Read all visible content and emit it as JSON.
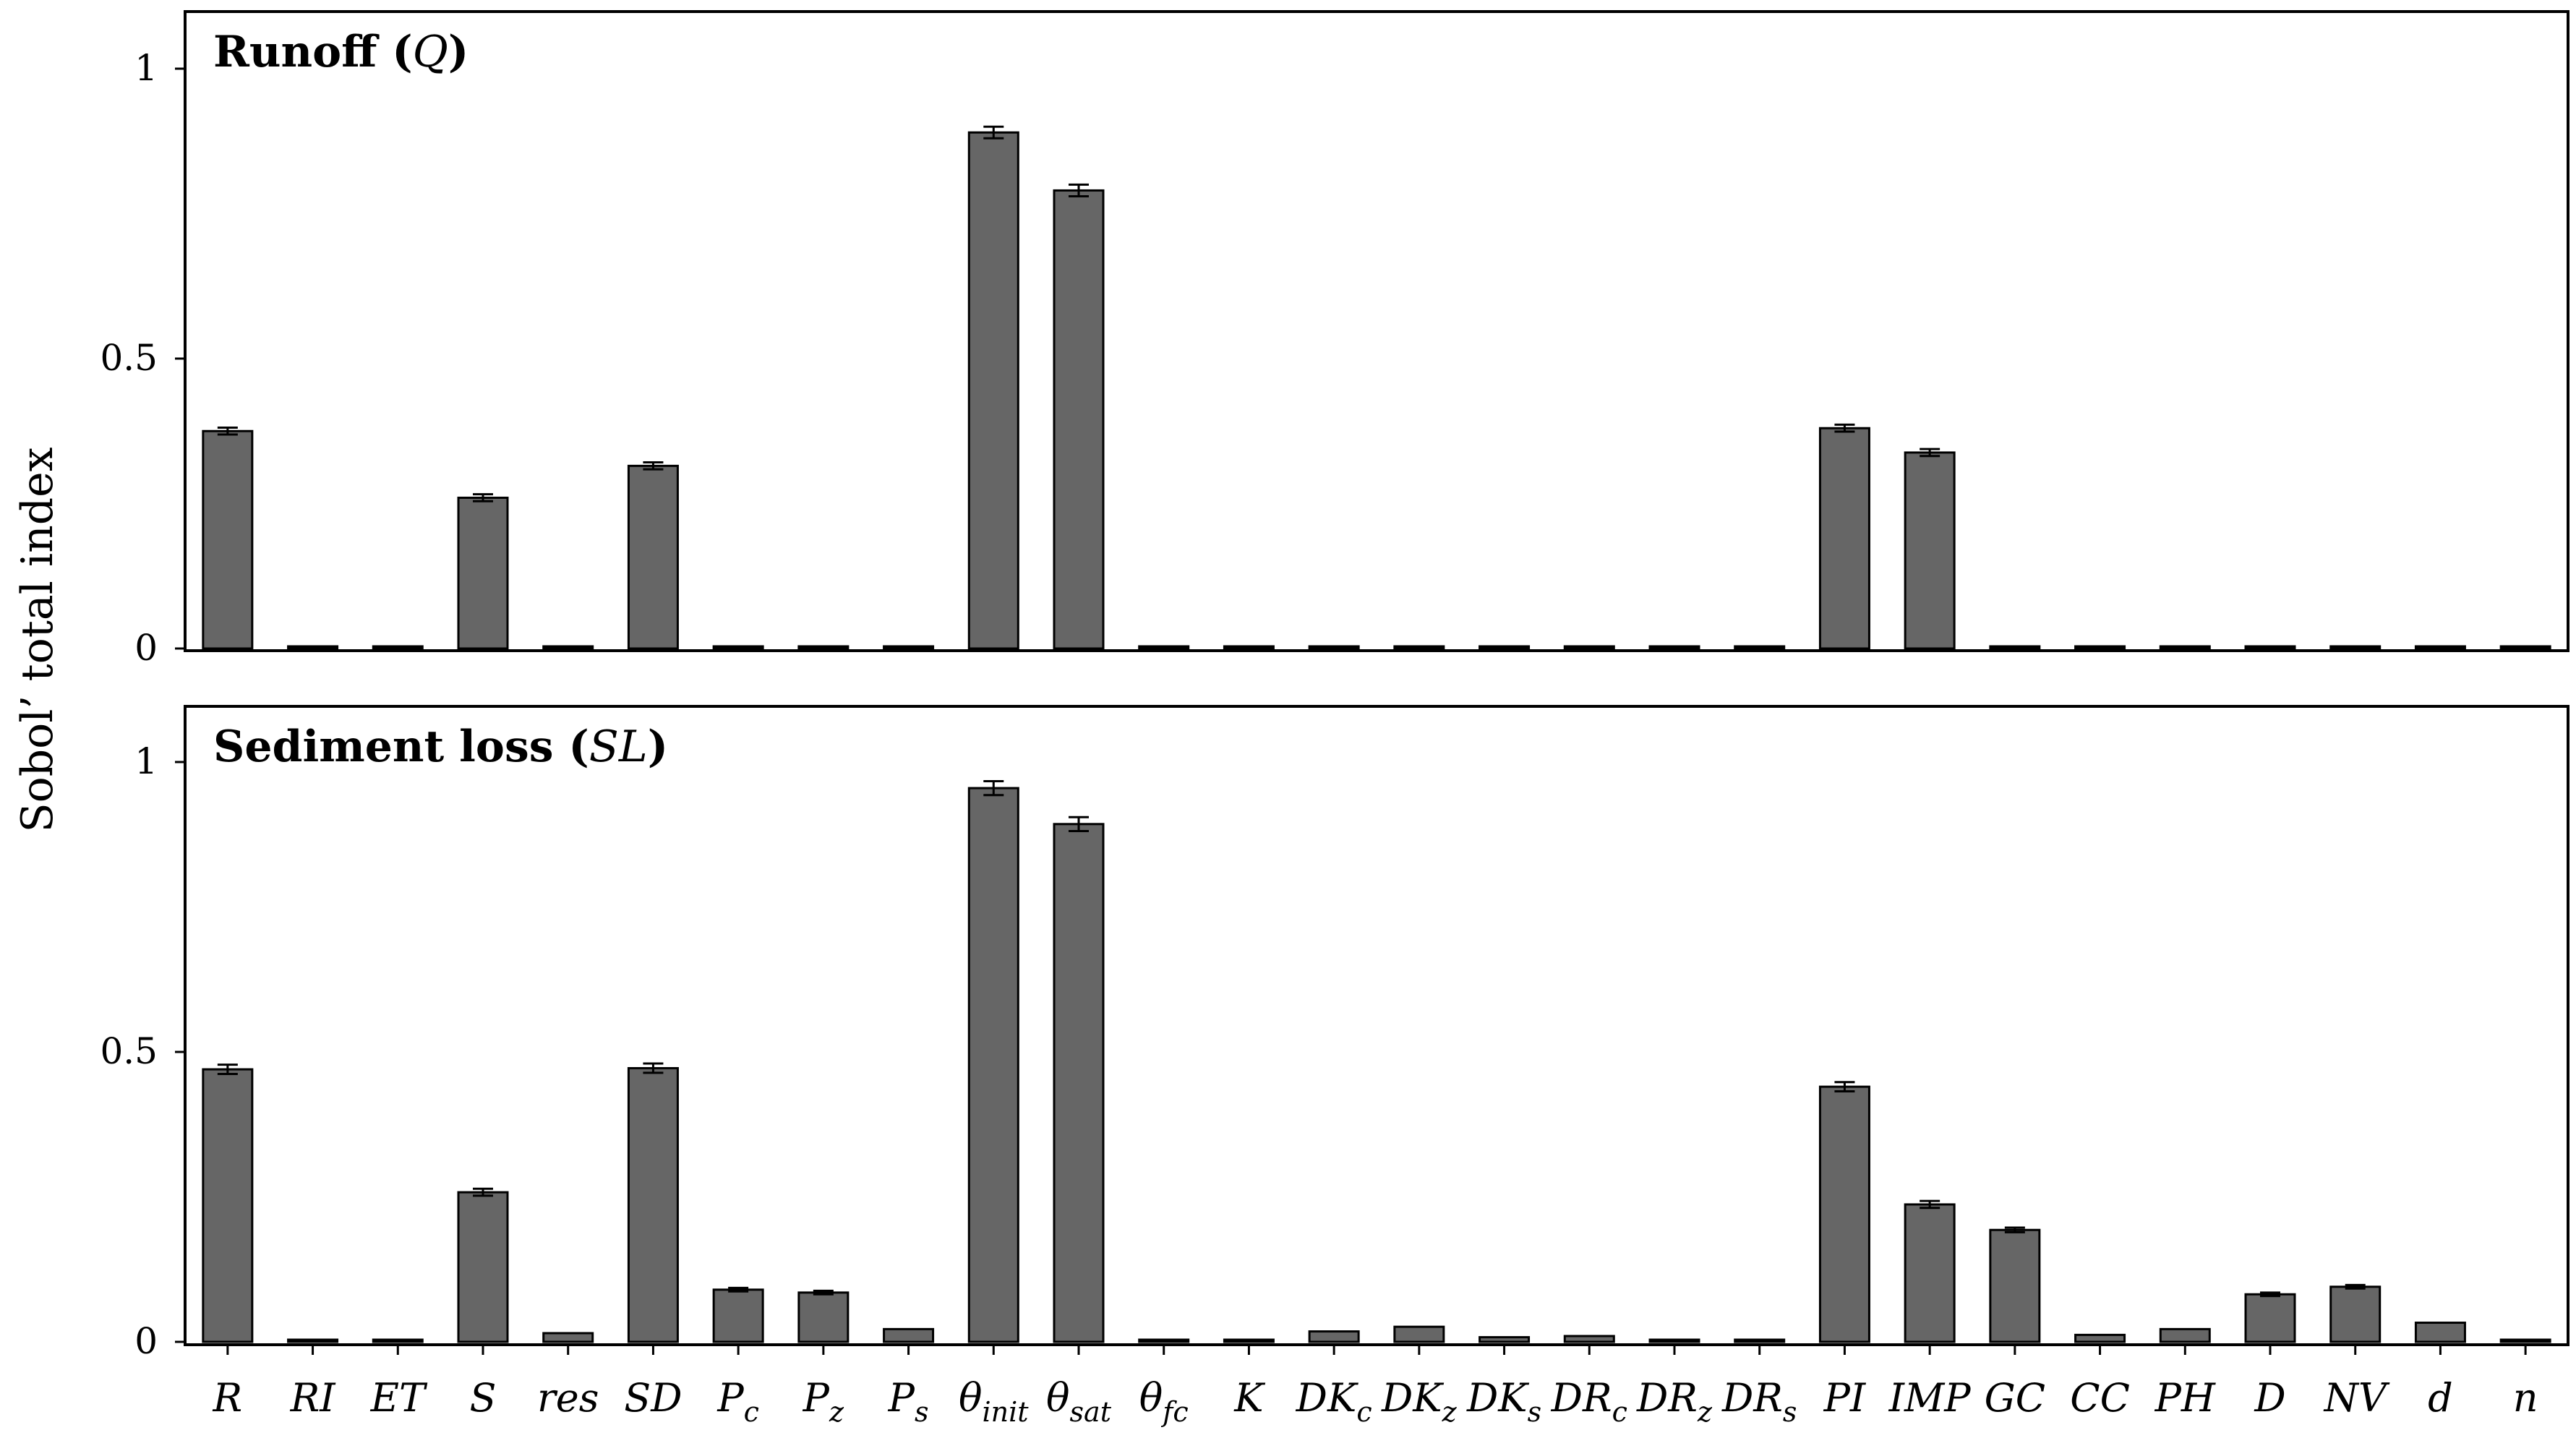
{
  "figure": {
    "ylabel": "Sobol’ total index"
  },
  "chart_data": [
    {
      "type": "bar",
      "title": {
        "prefix": "Runoff (",
        "symbol": "Q",
        "suffix": ")"
      },
      "ylabel": "Sobol’ total index",
      "ylim": [
        0,
        1.1
      ],
      "yticks": [
        {
          "value": 0,
          "label": "0"
        },
        {
          "value": 0.5,
          "label": "0.5"
        },
        {
          "value": 1,
          "label": "1"
        }
      ],
      "grid": false,
      "error_bars": true,
      "bar_color": "#666666",
      "categories": [
        "R",
        "RI",
        "ET",
        "S",
        "res",
        "SD",
        "Pc",
        "Pz",
        "Ps",
        "θinit",
        "θsat",
        "θfc",
        "K",
        "DKc",
        "DKz",
        "DKs",
        "DRc",
        "DRz",
        "DRs",
        "PI",
        "IMP",
        "GC",
        "CC",
        "PH",
        "D",
        "NV",
        "d",
        "n"
      ],
      "values": [
        0.375,
        0.0,
        0.0,
        0.26,
        0.0,
        0.315,
        0.0,
        0.0,
        0.0,
        0.89,
        0.79,
        0.0,
        0.0,
        0.0,
        0.0,
        0.0,
        0.0,
        0.0,
        0.0,
        0.38,
        0.338,
        0.0,
        0.0,
        0.0,
        0.0,
        0.0,
        0.0,
        0.0
      ],
      "errors": [
        0.006,
        0.0,
        0.0,
        0.006,
        0.0,
        0.006,
        0.0,
        0.0,
        0.0,
        0.01,
        0.01,
        0.0,
        0.0,
        0.0,
        0.0,
        0.0,
        0.0,
        0.0,
        0.0,
        0.006,
        0.006,
        0.0,
        0.0,
        0.0,
        0.0,
        0.0,
        0.0,
        0.0
      ]
    },
    {
      "type": "bar",
      "title": {
        "prefix": "Sediment loss (",
        "symbol": "SL",
        "suffix": ")"
      },
      "ylabel": "Sobol’ total index",
      "ylim": [
        0,
        1.1
      ],
      "yticks": [
        {
          "value": 0,
          "label": "0"
        },
        {
          "value": 0.5,
          "label": "0.5"
        },
        {
          "value": 1,
          "label": "1"
        }
      ],
      "grid": false,
      "error_bars": true,
      "bar_color": "#666666",
      "categories": [
        "R",
        "RI",
        "ET",
        "S",
        "res",
        "SD",
        "Pc",
        "Pz",
        "Ps",
        "θinit",
        "θsat",
        "θfc",
        "K",
        "DKc",
        "DKz",
        "DKs",
        "DRc",
        "DRz",
        "DRs",
        "PI",
        "IMP",
        "GC",
        "CC",
        "PH",
        "D",
        "NV",
        "d",
        "n"
      ],
      "values": [
        0.47,
        0.003,
        0.002,
        0.258,
        0.015,
        0.472,
        0.09,
        0.085,
        0.022,
        0.955,
        0.893,
        0.001,
        0.002,
        0.018,
        0.026,
        0.008,
        0.01,
        0.003,
        0.002,
        0.44,
        0.237,
        0.193,
        0.012,
        0.022,
        0.082,
        0.095,
        0.033,
        0.002
      ],
      "errors": [
        0.008,
        0.0,
        0.0,
        0.006,
        0.0,
        0.008,
        0.003,
        0.003,
        0.0,
        0.012,
        0.012,
        0.0,
        0.0,
        0.0,
        0.0,
        0.0,
        0.0,
        0.0,
        0.0,
        0.008,
        0.006,
        0.004,
        0.0,
        0.0,
        0.003,
        0.003,
        0.0,
        0.0
      ]
    }
  ],
  "x_labels": [
    {
      "base": "R",
      "sub": ""
    },
    {
      "base": "RI",
      "sub": ""
    },
    {
      "base": "ET",
      "sub": ""
    },
    {
      "base": "S",
      "sub": ""
    },
    {
      "base": "res",
      "sub": ""
    },
    {
      "base": "SD",
      "sub": ""
    },
    {
      "base": "P",
      "sub": "c"
    },
    {
      "base": "P",
      "sub": "z"
    },
    {
      "base": "P",
      "sub": "s"
    },
    {
      "base": "θ",
      "sub": "init"
    },
    {
      "base": "θ",
      "sub": "sat"
    },
    {
      "base": "θ",
      "sub": "fc"
    },
    {
      "base": "K",
      "sub": ""
    },
    {
      "base": "DK",
      "sub": "c"
    },
    {
      "base": "DK",
      "sub": "z"
    },
    {
      "base": "DK",
      "sub": "s"
    },
    {
      "base": "DR",
      "sub": "c"
    },
    {
      "base": "DR",
      "sub": "z"
    },
    {
      "base": "DR",
      "sub": "s"
    },
    {
      "base": "PI",
      "sub": ""
    },
    {
      "base": "IMP",
      "sub": ""
    },
    {
      "base": "GC",
      "sub": ""
    },
    {
      "base": "CC",
      "sub": ""
    },
    {
      "base": "PH",
      "sub": ""
    },
    {
      "base": "D",
      "sub": ""
    },
    {
      "base": "NV",
      "sub": ""
    },
    {
      "base": "d",
      "sub": ""
    },
    {
      "base": "n",
      "sub": ""
    }
  ]
}
